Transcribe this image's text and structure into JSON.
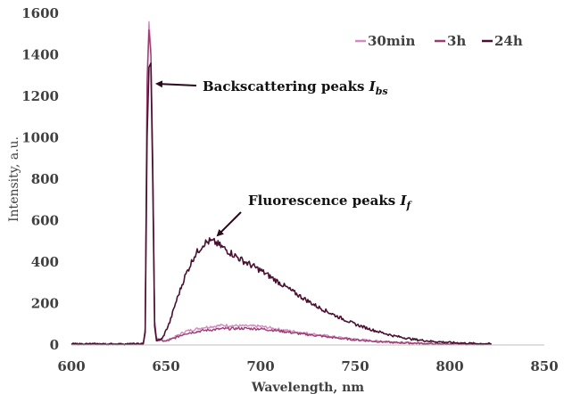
{
  "chart_data": {
    "type": "line",
    "title": "",
    "xlabel": "Wavelength, nm",
    "ylabel": "Intensity, a.u.",
    "xlim": [
      600,
      850
    ],
    "ylim": [
      0,
      1600
    ],
    "xticks": [
      600,
      650,
      700,
      750,
      800,
      850
    ],
    "yticks": [
      0,
      200,
      400,
      600,
      800,
      1000,
      1200,
      1400,
      1600
    ],
    "grid": false,
    "legend_position": "top-right",
    "series": [
      {
        "name": "30min",
        "color": "#d48bc0",
        "points": [
          [
            600,
            5
          ],
          [
            630,
            4
          ],
          [
            638,
            6
          ],
          [
            639,
            80
          ],
          [
            640,
            1300
          ],
          [
            641,
            1560
          ],
          [
            642,
            1430
          ],
          [
            643,
            900
          ],
          [
            644,
            120
          ],
          [
            645,
            30
          ],
          [
            650,
            20
          ],
          [
            655,
            40
          ],
          [
            660,
            65
          ],
          [
            670,
            85
          ],
          [
            680,
            95
          ],
          [
            690,
            92
          ],
          [
            700,
            90
          ],
          [
            710,
            75
          ],
          [
            720,
            62
          ],
          [
            730,
            50
          ],
          [
            740,
            38
          ],
          [
            750,
            28
          ],
          [
            760,
            20
          ],
          [
            770,
            14
          ],
          [
            780,
            10
          ],
          [
            790,
            7
          ],
          [
            800,
            5
          ],
          [
            810,
            4
          ],
          [
            822,
            3
          ]
        ]
      },
      {
        "name": "3h",
        "color": "#9c3d72",
        "points": [
          [
            600,
            5
          ],
          [
            630,
            4
          ],
          [
            638,
            6
          ],
          [
            639,
            70
          ],
          [
            640,
            1250
          ],
          [
            641,
            1520
          ],
          [
            642,
            1400
          ],
          [
            643,
            880
          ],
          [
            644,
            110
          ],
          [
            645,
            25
          ],
          [
            650,
            18
          ],
          [
            655,
            35
          ],
          [
            660,
            55
          ],
          [
            670,
            70
          ],
          [
            680,
            78
          ],
          [
            690,
            80
          ],
          [
            700,
            78
          ],
          [
            710,
            68
          ],
          [
            720,
            55
          ],
          [
            730,
            45
          ],
          [
            740,
            34
          ],
          [
            750,
            25
          ],
          [
            760,
            18
          ],
          [
            770,
            12
          ],
          [
            780,
            9
          ],
          [
            790,
            6
          ],
          [
            800,
            5
          ],
          [
            810,
            4
          ],
          [
            822,
            3
          ]
        ]
      },
      {
        "name": "24h",
        "color": "#4a1030",
        "points": [
          [
            600,
            5
          ],
          [
            630,
            4
          ],
          [
            638,
            6
          ],
          [
            639,
            60
          ],
          [
            640,
            1000
          ],
          [
            641,
            1340
          ],
          [
            642,
            1360
          ],
          [
            643,
            800
          ],
          [
            644,
            90
          ],
          [
            645,
            20
          ],
          [
            648,
            30
          ],
          [
            652,
            110
          ],
          [
            655,
            200
          ],
          [
            660,
            330
          ],
          [
            665,
            430
          ],
          [
            670,
            490
          ],
          [
            673,
            500
          ],
          [
            676,
            495
          ],
          [
            680,
            470
          ],
          [
            685,
            440
          ],
          [
            690,
            410
          ],
          [
            700,
            360
          ],
          [
            710,
            300
          ],
          [
            720,
            240
          ],
          [
            730,
            185
          ],
          [
            740,
            140
          ],
          [
            750,
            100
          ],
          [
            760,
            70
          ],
          [
            770,
            45
          ],
          [
            780,
            28
          ],
          [
            790,
            18
          ],
          [
            800,
            12
          ],
          [
            810,
            8
          ],
          [
            822,
            5
          ]
        ]
      }
    ],
    "annotations": [
      {
        "text": "Backscattering peaks ",
        "symbol": "I",
        "subscript": "bs",
        "x": 641,
        "y": 1270
      },
      {
        "text": "Fluorescence peaks ",
        "symbol": "I",
        "subscript": "f",
        "x": 674,
        "y": 505
      }
    ]
  }
}
